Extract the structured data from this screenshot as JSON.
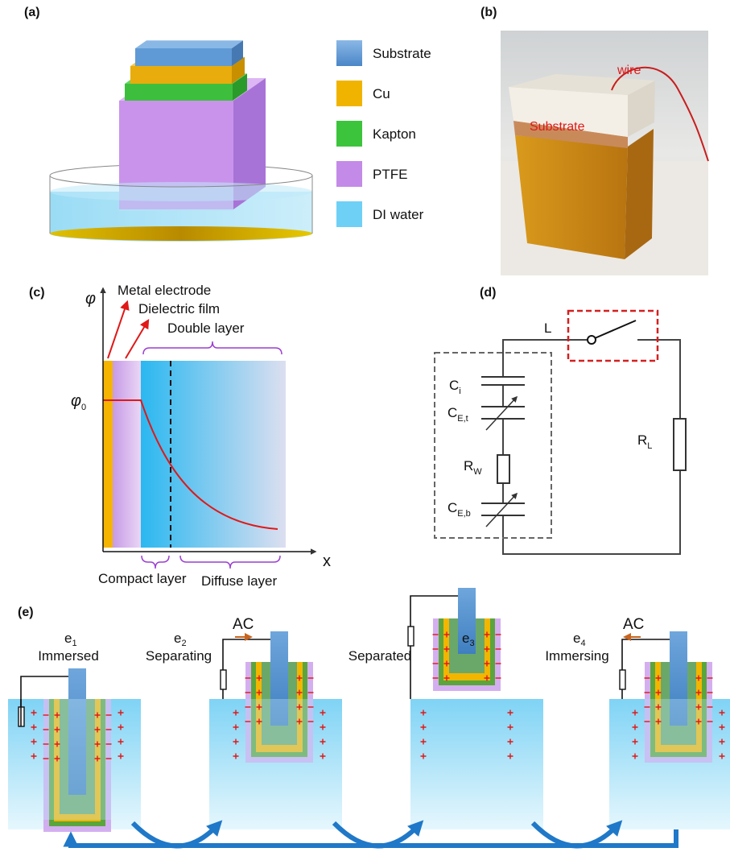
{
  "panel_a": {
    "label": "(a)",
    "legend": [
      "Substrate",
      "Cu",
      "Kapton",
      "PTFE",
      "DI water"
    ]
  },
  "panel_b": {
    "label": "(b)",
    "annotations": [
      "wire",
      "Substrate"
    ]
  },
  "panel_c": {
    "label": "(c)",
    "y_axis": "φ",
    "x_axis": "x",
    "phi0": {
      "base": "φ",
      "sub": "0"
    },
    "annotations": [
      "Metal electrode",
      "Dielectric film",
      "Double layer",
      "Compact layer",
      "Diffuse layer"
    ]
  },
  "panel_d": {
    "label": "(d)",
    "switch": "L",
    "components": [
      {
        "base": "C",
        "sub": "i"
      },
      {
        "base": "C",
        "sub": "E,t"
      },
      {
        "base": "R",
        "sub": "W"
      },
      {
        "base": "C",
        "sub": "E,b"
      }
    ],
    "load": {
      "base": "R",
      "sub": "L"
    }
  },
  "panel_e": {
    "label": "(e)",
    "stages": [
      {
        "base": "e",
        "sub": "1",
        "name": "Immersed"
      },
      {
        "base": "e",
        "sub": "2",
        "name": "Separating",
        "current": "AC"
      },
      {
        "base": "e",
        "sub": "3",
        "name": "Separated"
      },
      {
        "base": "e",
        "sub": "4",
        "name": "Immersing",
        "current": "AC"
      }
    ]
  }
}
